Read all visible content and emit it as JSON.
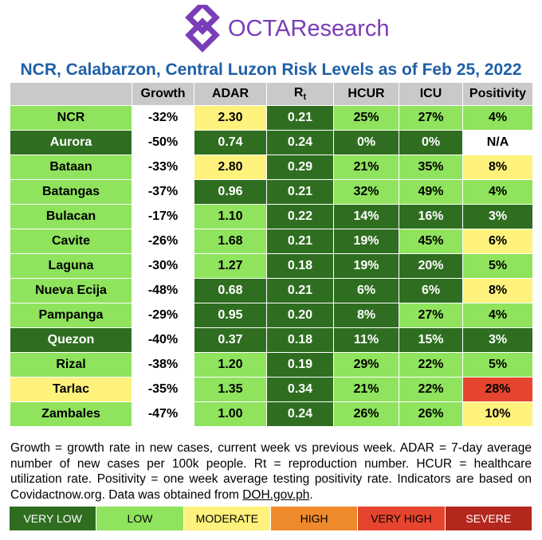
{
  "header": {
    "logo_text": "OCTAResearch",
    "title": "NCR, Calabarzon, Central Luzon Risk Levels as of Feb 25, 2022"
  },
  "table": {
    "header_color": "#c9c9c9",
    "columns": [
      {
        "text": ""
      },
      {
        "text": "Growth"
      },
      {
        "text": "ADAR"
      },
      {
        "text": "R",
        "sub": "t"
      },
      {
        "text": "HCUR"
      },
      {
        "text": "ICU"
      },
      {
        "text": "Positivity"
      }
    ],
    "rows": [
      [
        [
          "NCR",
          "#8fe35d"
        ],
        [
          "-32%",
          "#ffffff"
        ],
        [
          "2.30",
          "#fff27c"
        ],
        [
          "0.21",
          "#2f6e21"
        ],
        [
          "25%",
          "#8fe35d"
        ],
        [
          "27%",
          "#8fe35d"
        ],
        [
          "4%",
          "#8fe35d"
        ]
      ],
      [
        [
          "Aurora",
          "#2f6e21"
        ],
        [
          "-50%",
          "#ffffff"
        ],
        [
          "0.74",
          "#2f6e21"
        ],
        [
          "0.24",
          "#2f6e21"
        ],
        [
          "0%",
          "#2f6e21"
        ],
        [
          "0%",
          "#2f6e21"
        ],
        [
          "N/A",
          "#ffffff"
        ]
      ],
      [
        [
          "Bataan",
          "#8fe35d"
        ],
        [
          "-33%",
          "#ffffff"
        ],
        [
          "2.80",
          "#fff27c"
        ],
        [
          "0.29",
          "#2f6e21"
        ],
        [
          "21%",
          "#8fe35d"
        ],
        [
          "35%",
          "#8fe35d"
        ],
        [
          "8%",
          "#fff27c"
        ]
      ],
      [
        [
          "Batangas",
          "#8fe35d"
        ],
        [
          "-37%",
          "#ffffff"
        ],
        [
          "0.96",
          "#2f6e21"
        ],
        [
          "0.21",
          "#2f6e21"
        ],
        [
          "32%",
          "#8fe35d"
        ],
        [
          "49%",
          "#8fe35d"
        ],
        [
          "4%",
          "#8fe35d"
        ]
      ],
      [
        [
          "Bulacan",
          "#8fe35d"
        ],
        [
          "-17%",
          "#ffffff"
        ],
        [
          "1.10",
          "#8fe35d"
        ],
        [
          "0.22",
          "#2f6e21"
        ],
        [
          "14%",
          "#2f6e21"
        ],
        [
          "16%",
          "#2f6e21"
        ],
        [
          "3%",
          "#2f6e21"
        ]
      ],
      [
        [
          "Cavite",
          "#8fe35d"
        ],
        [
          "-26%",
          "#ffffff"
        ],
        [
          "1.68",
          "#8fe35d"
        ],
        [
          "0.21",
          "#2f6e21"
        ],
        [
          "19%",
          "#2f6e21"
        ],
        [
          "45%",
          "#8fe35d"
        ],
        [
          "6%",
          "#fff27c"
        ]
      ],
      [
        [
          "Laguna",
          "#8fe35d"
        ],
        [
          "-30%",
          "#ffffff"
        ],
        [
          "1.27",
          "#8fe35d"
        ],
        [
          "0.18",
          "#2f6e21"
        ],
        [
          "19%",
          "#2f6e21"
        ],
        [
          "20%",
          "#2f6e21"
        ],
        [
          "5%",
          "#8fe35d"
        ]
      ],
      [
        [
          "Nueva Ecija",
          "#8fe35d"
        ],
        [
          "-48%",
          "#ffffff"
        ],
        [
          "0.68",
          "#2f6e21"
        ],
        [
          "0.21",
          "#2f6e21"
        ],
        [
          "6%",
          "#2f6e21"
        ],
        [
          "6%",
          "#2f6e21"
        ],
        [
          "8%",
          "#fff27c"
        ]
      ],
      [
        [
          "Pampanga",
          "#8fe35d"
        ],
        [
          "-29%",
          "#ffffff"
        ],
        [
          "0.95",
          "#2f6e21"
        ],
        [
          "0.20",
          "#2f6e21"
        ],
        [
          "8%",
          "#2f6e21"
        ],
        [
          "27%",
          "#8fe35d"
        ],
        [
          "4%",
          "#8fe35d"
        ]
      ],
      [
        [
          "Quezon",
          "#2f6e21"
        ],
        [
          "-40%",
          "#ffffff"
        ],
        [
          "0.37",
          "#2f6e21"
        ],
        [
          "0.18",
          "#2f6e21"
        ],
        [
          "11%",
          "#2f6e21"
        ],
        [
          "15%",
          "#2f6e21"
        ],
        [
          "3%",
          "#2f6e21"
        ]
      ],
      [
        [
          "Rizal",
          "#8fe35d"
        ],
        [
          "-38%",
          "#ffffff"
        ],
        [
          "1.20",
          "#8fe35d"
        ],
        [
          "0.19",
          "#2f6e21"
        ],
        [
          "29%",
          "#8fe35d"
        ],
        [
          "22%",
          "#8fe35d"
        ],
        [
          "5%",
          "#8fe35d"
        ]
      ],
      [
        [
          "Tarlac",
          "#fff27c"
        ],
        [
          "-35%",
          "#ffffff"
        ],
        [
          "1.35",
          "#8fe35d"
        ],
        [
          "0.34",
          "#2f6e21"
        ],
        [
          "21%",
          "#8fe35d"
        ],
        [
          "22%",
          "#8fe35d"
        ],
        [
          "28%",
          "#e5452e"
        ]
      ],
      [
        [
          "Zambales",
          "#8fe35d"
        ],
        [
          "-47%",
          "#ffffff"
        ],
        [
          "1.00",
          "#8fe35d"
        ],
        [
          "0.24",
          "#2f6e21"
        ],
        [
          "26%",
          "#8fe35d"
        ],
        [
          "26%",
          "#8fe35d"
        ],
        [
          "10%",
          "#fff27c"
        ]
      ]
    ]
  },
  "footnote": {
    "text": "Growth = growth rate in new cases, current week vs previous week. ADAR = 7-day average number of new cases per 100k people. Rt = reproduction number. HCUR = healthcare utilization rate. Positivity = one week average testing positivity rate. Indicators are based on Covidactnow.org. Data was obtained from ",
    "link": "DOH.gov.ph",
    "end": "."
  },
  "legend": [
    {
      "label": "VERY LOW",
      "color": "#2f6e21"
    },
    {
      "label": "LOW",
      "color": "#8fe35d"
    },
    {
      "label": "MODERATE",
      "color": "#fff27c"
    },
    {
      "label": "HIGH",
      "color": "#ee8a2c"
    },
    {
      "label": "VERY HIGH",
      "color": "#e5452e"
    },
    {
      "label": "SEVERE",
      "color": "#b3271d"
    }
  ]
}
